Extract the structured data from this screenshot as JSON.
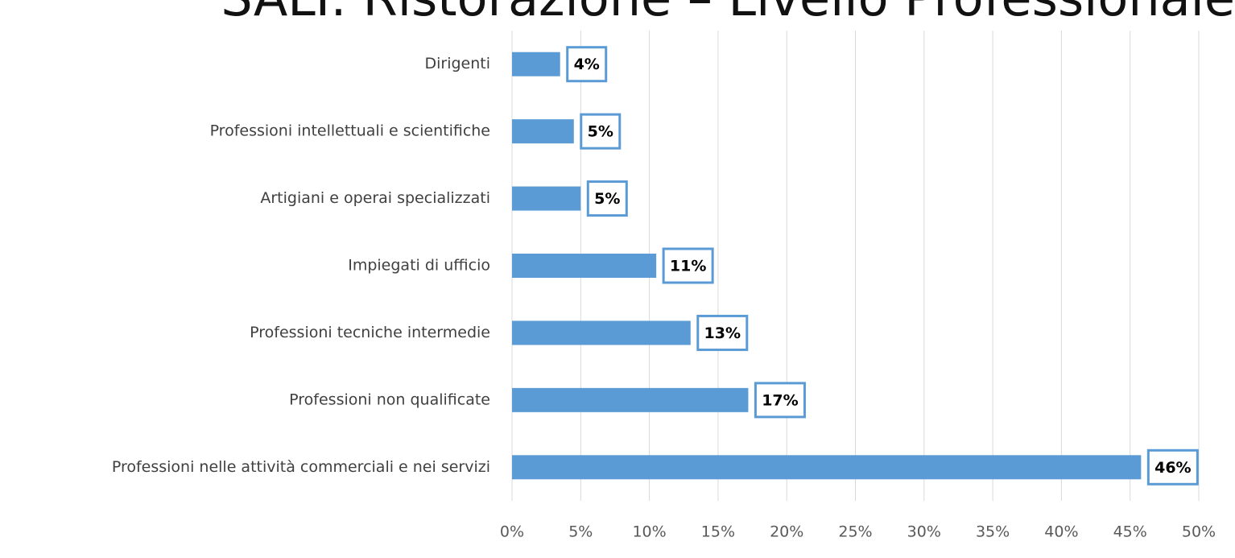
{
  "chart_data": {
    "type": "bar",
    "orientation": "horizontal",
    "title": "SALI: Ristorazione – Livello Professionale",
    "categories": [
      "Dirigenti",
      "Professioni intellettuali e scientifiche",
      "Artigiani e operai specializzati",
      "Impiegati di ufficio",
      "Professioni tecniche intermedie",
      "Professioni non qualificate",
      "Professioni nelle attività commerciali e nei servizi"
    ],
    "values": [
      3.5,
      4.5,
      5.0,
      10.5,
      13.0,
      17.2,
      45.8
    ],
    "value_labels": [
      "4%",
      "5%",
      "5%",
      "11%",
      "13%",
      "17%",
      "46%"
    ],
    "color": "#5b9bd5",
    "xlim": [
      0,
      50
    ],
    "xticks": [
      {
        "value": 0,
        "label": "0%"
      },
      {
        "value": 5,
        "label": "5%"
      },
      {
        "value": 10,
        "label": "10%"
      },
      {
        "value": 15,
        "label": "15%"
      },
      {
        "value": 20,
        "label": "20%"
      },
      {
        "value": 25,
        "label": "25%"
      },
      {
        "value": 30,
        "label": "30%"
      },
      {
        "value": 35,
        "label": "35%"
      },
      {
        "value": 40,
        "label": "40%"
      },
      {
        "value": 45,
        "label": "45%"
      },
      {
        "value": 50,
        "label": "50%"
      }
    ],
    "grid": true
  }
}
